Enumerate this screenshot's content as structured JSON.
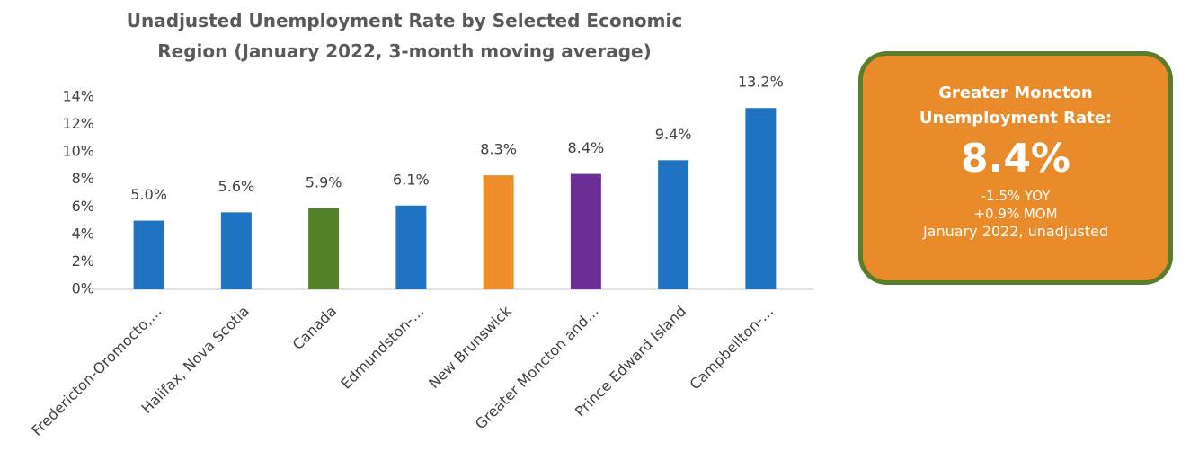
{
  "chart_data": {
    "type": "bar",
    "title": "Unadjusted Unemployment Rate by Selected Economic Region (January 2022, 3-month moving average)",
    "categories": [
      "Fredericton-Oromocto,…",
      "Halifax, Nova Scotia",
      "Canada",
      "Edmundston-…",
      "New Brunswick",
      "Greater Moncton and…",
      "Prince Edward Island",
      "Campbellton-…"
    ],
    "values": [
      5.0,
      5.6,
      5.9,
      6.1,
      8.3,
      8.4,
      9.4,
      13.2
    ],
    "value_labels": [
      "5.0%",
      "5.6%",
      "5.9%",
      "6.1%",
      "8.3%",
      "8.4%",
      "9.4%",
      "13.2%"
    ],
    "colors": [
      "#1F73C1",
      "#1F73C1",
      "#538129",
      "#1F73C1",
      "#EE8E2B",
      "#6B2E94",
      "#1F73C1",
      "#1F73C1"
    ],
    "ylim": [
      0,
      14
    ],
    "yticks": [
      {
        "value": 0,
        "label": "0%"
      },
      {
        "value": 2,
        "label": "2%"
      },
      {
        "value": 4,
        "label": "4%"
      },
      {
        "value": 6,
        "label": "6%"
      },
      {
        "value": 8,
        "label": "8%"
      },
      {
        "value": 10,
        "label": "10%"
      },
      {
        "value": 12,
        "label": "12%"
      },
      {
        "value": 14,
        "label": "14%"
      }
    ],
    "grid": false
  },
  "callout": {
    "title": "Greater Moncton Unemployment Rate:",
    "value": "8.4%",
    "yoy": "-1.5% YOY",
    "mom": "+0.9% MOM",
    "note": "January 2022, unadjusted"
  }
}
